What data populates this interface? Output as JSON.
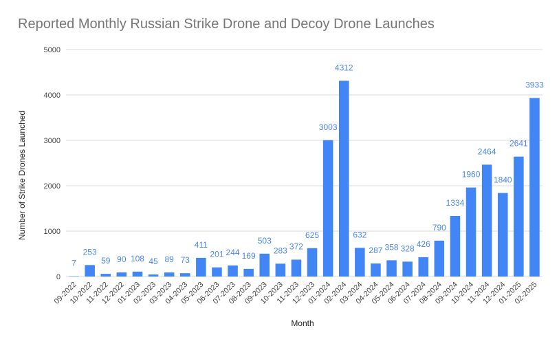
{
  "chart_data": {
    "type": "bar",
    "title": "Reported Monthly Russian Strike Drone and Decoy Drone Launches",
    "xlabel": "Month",
    "ylabel": "Number of Strike Drones Launched",
    "ylim": [
      0,
      5000
    ],
    "yticks": [
      "0",
      "1000",
      "2000",
      "3000",
      "4000",
      "5000"
    ],
    "grid": true,
    "legend": "none",
    "bar_color": "#4285f4",
    "label_color": "#4a86e8",
    "categories": [
      "09-2022",
      "10-2022",
      "11-2022",
      "12-2022",
      "01-2023",
      "02-2023",
      "03-2023",
      "04-2023",
      "05-2023",
      "06-2023",
      "07-2023",
      "08-2023",
      "09-2023",
      "10-2023",
      "11-2023",
      "12-2023",
      "01-2024",
      "02-2024",
      "03-2024",
      "04-2024",
      "05-2024",
      "06-2024",
      "07-2024",
      "08-2024",
      "09-2024",
      "10-2024",
      "11-2024",
      "12-2024",
      "01-2025",
      "02-2025"
    ],
    "values": [
      7,
      253,
      59,
      90,
      108,
      45,
      89,
      73,
      411,
      201,
      244,
      169,
      503,
      283,
      372,
      625,
      3003,
      4312,
      632,
      287,
      358,
      328,
      426,
      790,
      1334,
      1960,
      2464,
      1840,
      2641,
      3933
    ]
  }
}
